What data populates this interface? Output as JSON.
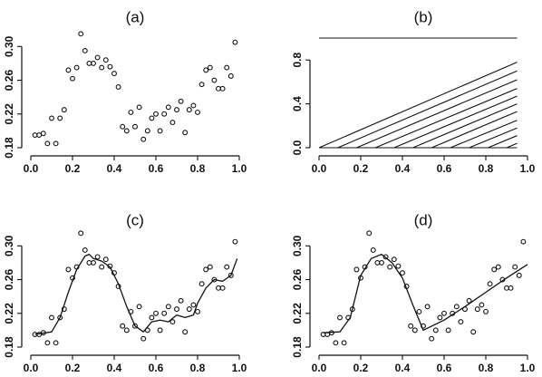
{
  "chart_data": [
    {
      "id": "a",
      "type": "scatter",
      "title": "(a)",
      "xlim": [
        0.0,
        1.0
      ],
      "ylim": [
        0.18,
        0.31
      ],
      "xticks": [
        0.0,
        0.2,
        0.4,
        0.6,
        0.8,
        1.0
      ],
      "xtick_labels": [
        "0.0",
        "0.2",
        "0.4",
        "0.6",
        "0.8",
        "1.0"
      ],
      "yticks": [
        0.18,
        0.22,
        0.26,
        0.3
      ],
      "ytick_labels": [
        "0.18",
        "0.22",
        "0.26",
        "0.30"
      ],
      "series": [
        {
          "x": [
            0.02,
            0.04,
            0.06,
            0.08,
            0.1,
            0.12,
            0.14,
            0.16,
            0.18,
            0.2,
            0.22,
            0.24,
            0.26,
            0.28,
            0.3,
            0.32,
            0.34,
            0.36,
            0.38,
            0.4,
            0.42,
            0.44,
            0.46,
            0.48,
            0.5,
            0.52,
            0.54,
            0.56,
            0.58,
            0.6,
            0.62,
            0.64,
            0.66,
            0.68,
            0.7,
            0.72,
            0.74,
            0.76,
            0.78,
            0.8,
            0.82,
            0.84,
            0.86,
            0.88,
            0.9,
            0.92,
            0.94,
            0.96,
            0.98
          ],
          "y": [
            0.195,
            0.195,
            0.197,
            0.185,
            0.215,
            0.185,
            0.215,
            0.225,
            0.272,
            0.262,
            0.275,
            0.315,
            0.295,
            0.28,
            0.28,
            0.287,
            0.275,
            0.284,
            0.276,
            0.268,
            0.252,
            0.205,
            0.2,
            0.222,
            0.205,
            0.228,
            0.19,
            0.2,
            0.215,
            0.22,
            0.2,
            0.22,
            0.228,
            0.21,
            0.225,
            0.235,
            0.198,
            0.225,
            0.23,
            0.222,
            0.255,
            0.272,
            0.275,
            0.26,
            0.25,
            0.25,
            0.275,
            0.265,
            0.305
          ]
        }
      ]
    },
    {
      "id": "b",
      "type": "line",
      "title": "(b)",
      "xlim": [
        0.0,
        1.0
      ],
      "ylim": [
        0.0,
        1.0
      ],
      "xticks": [
        0.0,
        0.2,
        0.4,
        0.6,
        0.8,
        1.0
      ],
      "xtick_labels": [
        "0.0",
        "0.2",
        "0.4",
        "0.6",
        "0.8",
        "1.0"
      ],
      "yticks": [
        0.0,
        0.4,
        0.8
      ],
      "ytick_labels": [
        "0.0",
        "0.4",
        "0.8"
      ],
      "top_line": {
        "x": [
          0.0,
          0.95
        ],
        "y": [
          1.0,
          1.0
        ]
      },
      "rays": [
        {
          "x": [
            0.0,
            0.95
          ],
          "y": [
            0.0,
            0.0
          ]
        },
        {
          "x": [
            0.0,
            0.95
          ],
          "y": [
            0.0,
            0.78
          ]
        },
        {
          "x": [
            0.09,
            0.95
          ],
          "y": [
            0.0,
            0.7
          ]
        },
        {
          "x": [
            0.18,
            0.95
          ],
          "y": [
            0.0,
            0.62
          ]
        },
        {
          "x": [
            0.27,
            0.95
          ],
          "y": [
            0.0,
            0.54
          ]
        },
        {
          "x": [
            0.36,
            0.95
          ],
          "y": [
            0.0,
            0.47
          ]
        },
        {
          "x": [
            0.45,
            0.95
          ],
          "y": [
            0.0,
            0.4
          ]
        },
        {
          "x": [
            0.54,
            0.95
          ],
          "y": [
            0.0,
            0.33
          ]
        },
        {
          "x": [
            0.63,
            0.95
          ],
          "y": [
            0.0,
            0.25
          ]
        },
        {
          "x": [
            0.72,
            0.95
          ],
          "y": [
            0.0,
            0.18
          ]
        },
        {
          "x": [
            0.81,
            0.95
          ],
          "y": [
            0.0,
            0.11
          ]
        },
        {
          "x": [
            0.9,
            0.95
          ],
          "y": [
            0.0,
            0.04
          ]
        }
      ]
    },
    {
      "id": "c",
      "type": "scatter",
      "title": "(c)",
      "xlim": [
        0.0,
        1.0
      ],
      "ylim": [
        0.18,
        0.31
      ],
      "xticks": [
        0.0,
        0.2,
        0.4,
        0.6,
        0.8,
        1.0
      ],
      "xtick_labels": [
        "0.0",
        "0.2",
        "0.4",
        "0.6",
        "0.8",
        "1.0"
      ],
      "yticks": [
        0.18,
        0.22,
        0.26,
        0.3
      ],
      "ytick_labels": [
        "0.18",
        "0.22",
        "0.26",
        "0.30"
      ],
      "series": [
        {
          "x": [
            0.02,
            0.04,
            0.06,
            0.08,
            0.1,
            0.12,
            0.14,
            0.16,
            0.18,
            0.2,
            0.22,
            0.24,
            0.26,
            0.28,
            0.3,
            0.32,
            0.34,
            0.36,
            0.38,
            0.4,
            0.42,
            0.44,
            0.46,
            0.48,
            0.5,
            0.52,
            0.54,
            0.56,
            0.58,
            0.6,
            0.62,
            0.64,
            0.66,
            0.68,
            0.7,
            0.72,
            0.74,
            0.76,
            0.78,
            0.8,
            0.82,
            0.84,
            0.86,
            0.88,
            0.9,
            0.92,
            0.94,
            0.96,
            0.98
          ],
          "y": [
            0.195,
            0.195,
            0.197,
            0.185,
            0.215,
            0.185,
            0.215,
            0.225,
            0.272,
            0.262,
            0.275,
            0.315,
            0.295,
            0.28,
            0.28,
            0.287,
            0.275,
            0.284,
            0.276,
            0.268,
            0.252,
            0.205,
            0.2,
            0.222,
            0.205,
            0.228,
            0.19,
            0.2,
            0.215,
            0.22,
            0.2,
            0.22,
            0.228,
            0.21,
            0.225,
            0.235,
            0.198,
            0.225,
            0.23,
            0.222,
            0.255,
            0.272,
            0.275,
            0.26,
            0.25,
            0.25,
            0.275,
            0.265,
            0.305
          ]
        }
      ],
      "fit_line": {
        "x": [
          0.02,
          0.1,
          0.14,
          0.18,
          0.22,
          0.26,
          0.28,
          0.3,
          0.34,
          0.38,
          0.42,
          0.46,
          0.5,
          0.54,
          0.58,
          0.62,
          0.66,
          0.7,
          0.74,
          0.78,
          0.8,
          0.84,
          0.88,
          0.92,
          0.96,
          0.99
        ],
        "y": [
          0.195,
          0.198,
          0.215,
          0.245,
          0.272,
          0.288,
          0.29,
          0.285,
          0.282,
          0.275,
          0.255,
          0.228,
          0.205,
          0.198,
          0.21,
          0.212,
          0.21,
          0.218,
          0.215,
          0.218,
          0.232,
          0.25,
          0.26,
          0.258,
          0.265,
          0.285
        ]
      }
    },
    {
      "id": "d",
      "type": "scatter",
      "title": "(d)",
      "xlim": [
        0.0,
        1.0
      ],
      "ylim": [
        0.18,
        0.31
      ],
      "xticks": [
        0.0,
        0.2,
        0.4,
        0.6,
        0.8,
        1.0
      ],
      "xtick_labels": [
        "0.0",
        "0.2",
        "0.4",
        "0.6",
        "0.8",
        "1.0"
      ],
      "yticks": [
        0.18,
        0.22,
        0.26,
        0.3
      ],
      "ytick_labels": [
        "0.18",
        "0.22",
        "0.26",
        "0.30"
      ],
      "series": [
        {
          "x": [
            0.02,
            0.04,
            0.06,
            0.08,
            0.1,
            0.12,
            0.14,
            0.16,
            0.18,
            0.2,
            0.22,
            0.24,
            0.26,
            0.28,
            0.3,
            0.32,
            0.34,
            0.36,
            0.38,
            0.4,
            0.42,
            0.44,
            0.46,
            0.48,
            0.5,
            0.52,
            0.54,
            0.56,
            0.58,
            0.6,
            0.62,
            0.64,
            0.66,
            0.68,
            0.7,
            0.72,
            0.74,
            0.76,
            0.78,
            0.8,
            0.82,
            0.84,
            0.86,
            0.88,
            0.9,
            0.92,
            0.94,
            0.96,
            0.98
          ],
          "y": [
            0.195,
            0.195,
            0.197,
            0.185,
            0.215,
            0.185,
            0.215,
            0.225,
            0.272,
            0.262,
            0.275,
            0.315,
            0.295,
            0.28,
            0.28,
            0.287,
            0.275,
            0.284,
            0.276,
            0.268,
            0.252,
            0.205,
            0.2,
            0.222,
            0.205,
            0.228,
            0.19,
            0.2,
            0.215,
            0.22,
            0.2,
            0.22,
            0.228,
            0.21,
            0.225,
            0.235,
            0.198,
            0.225,
            0.23,
            0.222,
            0.255,
            0.272,
            0.275,
            0.26,
            0.25,
            0.25,
            0.275,
            0.265,
            0.305
          ]
        }
      ],
      "fit_line": {
        "x": [
          0.02,
          0.1,
          0.15,
          0.2,
          0.25,
          0.3,
          0.35,
          0.4,
          0.45,
          0.5,
          0.6,
          0.7,
          0.8,
          0.9,
          1.0
        ],
        "y": [
          0.197,
          0.198,
          0.215,
          0.265,
          0.285,
          0.29,
          0.28,
          0.262,
          0.23,
          0.2,
          0.212,
          0.228,
          0.245,
          0.262,
          0.278
        ]
      }
    }
  ]
}
